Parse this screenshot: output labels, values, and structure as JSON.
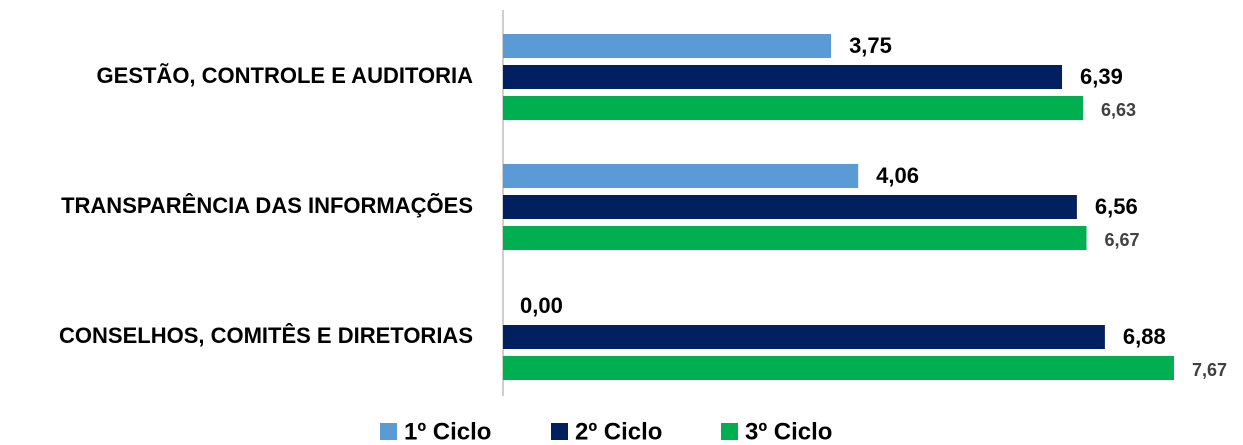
{
  "chart_data": {
    "type": "bar",
    "orientation": "horizontal",
    "categories": [
      "GESTÃO, CONTROLE E AUDITORIA",
      "TRANSPARÊNCIA DAS INFORMAÇÕES",
      "CONSELHOS, COMITÊS E DIRETORIAS"
    ],
    "series": [
      {
        "name": "1º Ciclo",
        "color": "#5b9bd5",
        "values": [
          3.75,
          4.06,
          0
        ],
        "value_labels": [
          "3,75",
          "4,06",
          "0,00"
        ]
      },
      {
        "name": "2º Ciclo",
        "color": "#002060",
        "values": [
          6.39,
          6.56,
          6.88
        ],
        "value_labels": [
          "6,39",
          "6,56",
          "6,88"
        ]
      },
      {
        "name": "3º Ciclo",
        "color": "#00b050",
        "values": [
          6.63,
          6.67,
          7.67
        ],
        "value_labels": [
          "6,63",
          "6,67",
          "7,67"
        ]
      }
    ],
    "legend": "bottom"
  }
}
